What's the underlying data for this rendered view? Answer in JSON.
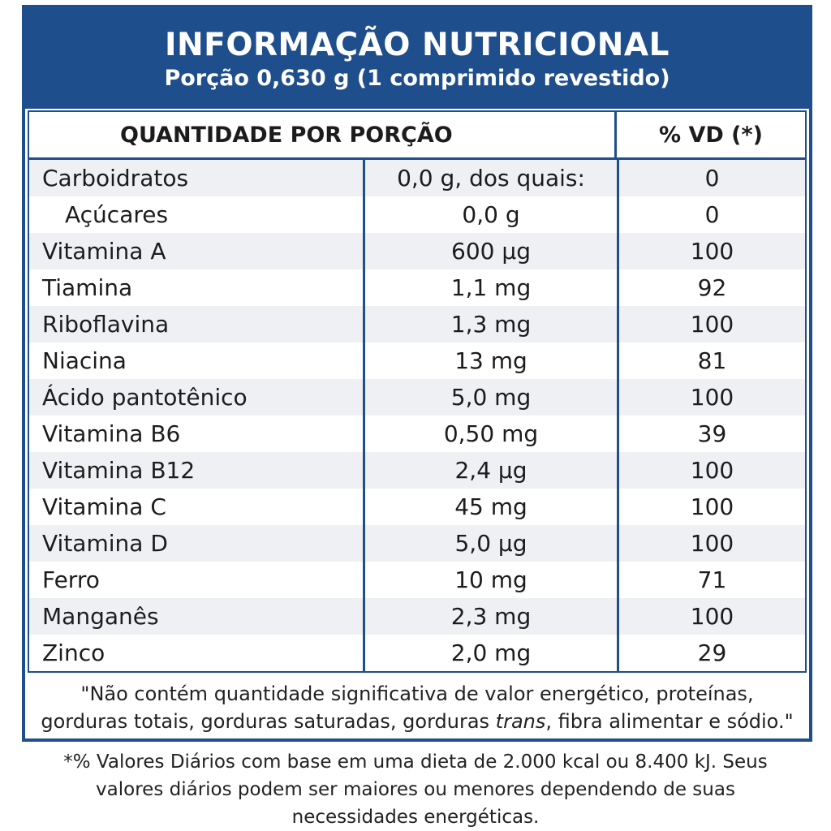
{
  "header": {
    "title": "INFORMAÇÃO NUTRICIONAL",
    "subtitle": "Porção 0,630 g (1 comprimido revestido)"
  },
  "table": {
    "col_quantity": "QUANTIDADE POR PORÇÃO",
    "col_vd": "% VD (*)",
    "rows": [
      {
        "name": "Carboidratos",
        "amount": "0,0 g, dos quais:",
        "vd": "0"
      },
      {
        "name": "Açúcares",
        "amount": "0,0 g",
        "vd": "0"
      },
      {
        "name": "Vitamina A",
        "amount": "600 µg",
        "vd": "100"
      },
      {
        "name": "Tiamina",
        "amount": "1,1 mg",
        "vd": "92"
      },
      {
        "name": "Riboflavina",
        "amount": "1,3 mg",
        "vd": "100"
      },
      {
        "name": "Niacina",
        "amount": "13 mg",
        "vd": "81"
      },
      {
        "name": "Ácido pantotênico",
        "amount": "5,0 mg",
        "vd": "100"
      },
      {
        "name": "Vitamina B6",
        "amount": "0,50 mg",
        "vd": "39"
      },
      {
        "name": "Vitamina B12",
        "amount": "2,4 µg",
        "vd": "100"
      },
      {
        "name": "Vitamina C",
        "amount": "45 mg",
        "vd": "100"
      },
      {
        "name": "Vitamina D",
        "amount": "5,0 µg",
        "vd": "100"
      },
      {
        "name": "Ferro",
        "amount": "10 mg",
        "vd": "71"
      },
      {
        "name": "Manganês",
        "amount": "2,3 mg",
        "vd": "100"
      },
      {
        "name": "Zinco",
        "amount": "2,0 mg",
        "vd": "29"
      }
    ]
  },
  "note": {
    "line1": "\"Não contém quantidade significativa de valor energético, proteínas,",
    "line2_pre": "gorduras totais, gorduras saturadas, gorduras ",
    "line2_italic": "trans",
    "line2_post": ", fibra alimentar e sódio.\""
  },
  "footnote": {
    "line1": "*% Valores Diários com base em uma dieta de 2.000 kcal ou 8.400 kJ. Seus",
    "line2": "valores diários podem ser maiores ou menores dependendo de suas",
    "line3": "necessidades energéticas."
  },
  "colors": {
    "brand_blue": "#1f4e8c",
    "row_shade": "#eef0f3"
  }
}
